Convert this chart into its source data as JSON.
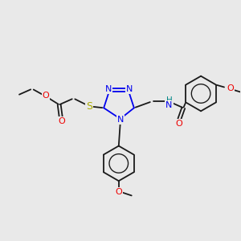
{
  "background_color": "#e9e9e9",
  "bond_color": "#1a1a1a",
  "atom_colors": {
    "N": "#0000ee",
    "O": "#ee0000",
    "S": "#aaaa00",
    "H": "#008888"
  },
  "figsize": [
    3.0,
    3.0
  ],
  "dpi": 100
}
